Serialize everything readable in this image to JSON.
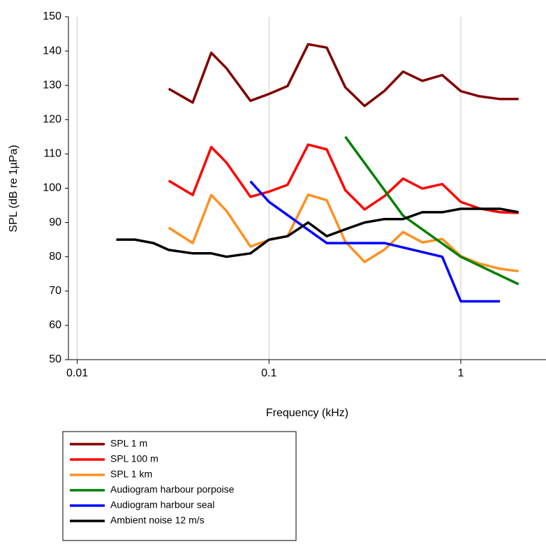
{
  "chart_data": {
    "type": "line",
    "x_label": "Frequency (kHz)",
    "y_label": "SPL (dB re 1µPa)",
    "x_log": true,
    "xlim": [
      0.009,
      2.78
    ],
    "ylim": [
      50,
      150
    ],
    "xticks": [
      0.01,
      0.1,
      1
    ],
    "yticks": [
      50,
      60,
      70,
      80,
      90,
      100,
      110,
      120,
      130,
      140,
      150
    ],
    "x_grid": true,
    "series": [
      {
        "name": "SPL 1 m",
        "color": "#800000",
        "x": [
          0.03,
          0.04,
          0.05,
          0.06,
          0.08,
          0.1,
          0.125,
          0.16,
          0.2,
          0.25,
          0.315,
          0.4,
          0.5,
          0.63,
          0.8,
          1,
          1.25,
          1.6,
          2
        ],
        "values": [
          129,
          125,
          139.5,
          135,
          125.5,
          127.5,
          129.8,
          142,
          141,
          129.4,
          124,
          128.4,
          134,
          131.3,
          133,
          128.3,
          126.8,
          126,
          126
        ]
      },
      {
        "name": "SPL 100 m",
        "color": "#ff0000",
        "x": [
          0.03,
          0.04,
          0.05,
          0.06,
          0.08,
          0.1,
          0.125,
          0.16,
          0.2,
          0.25,
          0.315,
          0.4,
          0.5,
          0.63,
          0.8,
          1,
          1.25,
          1.6,
          2
        ],
        "values": [
          102.2,
          98,
          112,
          107.5,
          97.5,
          99,
          101,
          112.7,
          111.3,
          99.4,
          93.8,
          97.7,
          102.8,
          99.9,
          101.2,
          96,
          94.1,
          93,
          92.8
        ]
      },
      {
        "name": "SPL 1 km",
        "color": "#ff9020",
        "x": [
          0.03,
          0.04,
          0.05,
          0.06,
          0.08,
          0.1,
          0.125,
          0.16,
          0.2,
          0.25,
          0.315,
          0.4,
          0.5,
          0.63,
          0.8,
          1,
          1.25,
          1.6,
          2
        ],
        "values": [
          88.5,
          84,
          98,
          93.4,
          83,
          84.9,
          86,
          98.1,
          96.5,
          84.4,
          78.5,
          82.1,
          87.2,
          84.2,
          85.2,
          80.2,
          78,
          76.5,
          75.8
        ]
      },
      {
        "name": "Audiogram harbour porpoise",
        "color": "#008000",
        "x": [
          0.25,
          0.5,
          1,
          2
        ],
        "values": [
          115,
          92,
          80,
          72
        ]
      },
      {
        "name": "Audiogram harbour seal",
        "color": "#0000ff",
        "x": [
          0.08,
          0.1,
          0.2,
          0.4,
          0.8,
          1,
          1.6
        ],
        "values": [
          102,
          96,
          84,
          84,
          80,
          67,
          67
        ]
      },
      {
        "name": "Ambient noise 12 m/s",
        "color": "#000000",
        "x": [
          0.016,
          0.02,
          0.025,
          0.03,
          0.04,
          0.05,
          0.06,
          0.08,
          0.1,
          0.125,
          0.16,
          0.2,
          0.25,
          0.315,
          0.4,
          0.5,
          0.63,
          0.8,
          1,
          1.25,
          1.6,
          2
        ],
        "values": [
          85,
          85,
          84,
          82,
          81,
          81,
          80,
          81,
          85,
          86,
          90,
          86,
          88,
          90,
          91,
          91,
          93,
          93,
          94,
          94,
          94,
          93
        ]
      }
    ]
  }
}
